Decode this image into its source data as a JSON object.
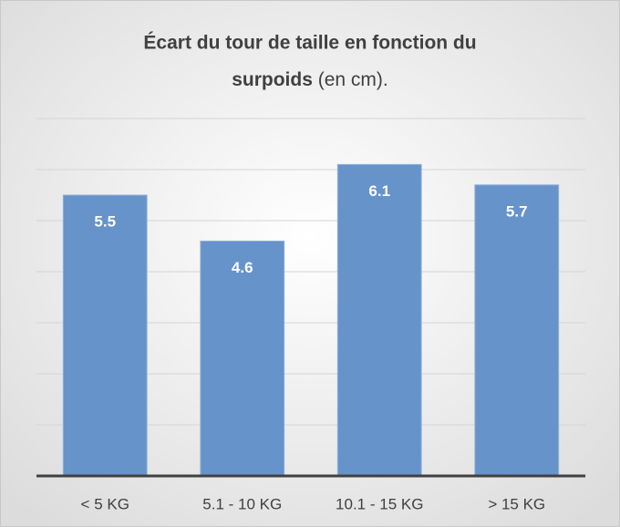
{
  "chart_data": {
    "type": "bar",
    "title_lines": [
      "Écart du tour de taille en fonction du",
      "surpoids"
    ],
    "subtitle": "(en cm).",
    "categories": [
      "< 5 KG",
      "5.1 - 10 KG",
      "10.1 - 15 KG",
      "> 15 KG"
    ],
    "values": [
      5.5,
      4.6,
      6.1,
      5.7
    ],
    "color": "#6693c9",
    "ylim": [
      0,
      7
    ],
    "yticks": [
      0,
      1,
      2,
      3,
      4,
      5,
      6,
      7
    ],
    "grid": true
  }
}
